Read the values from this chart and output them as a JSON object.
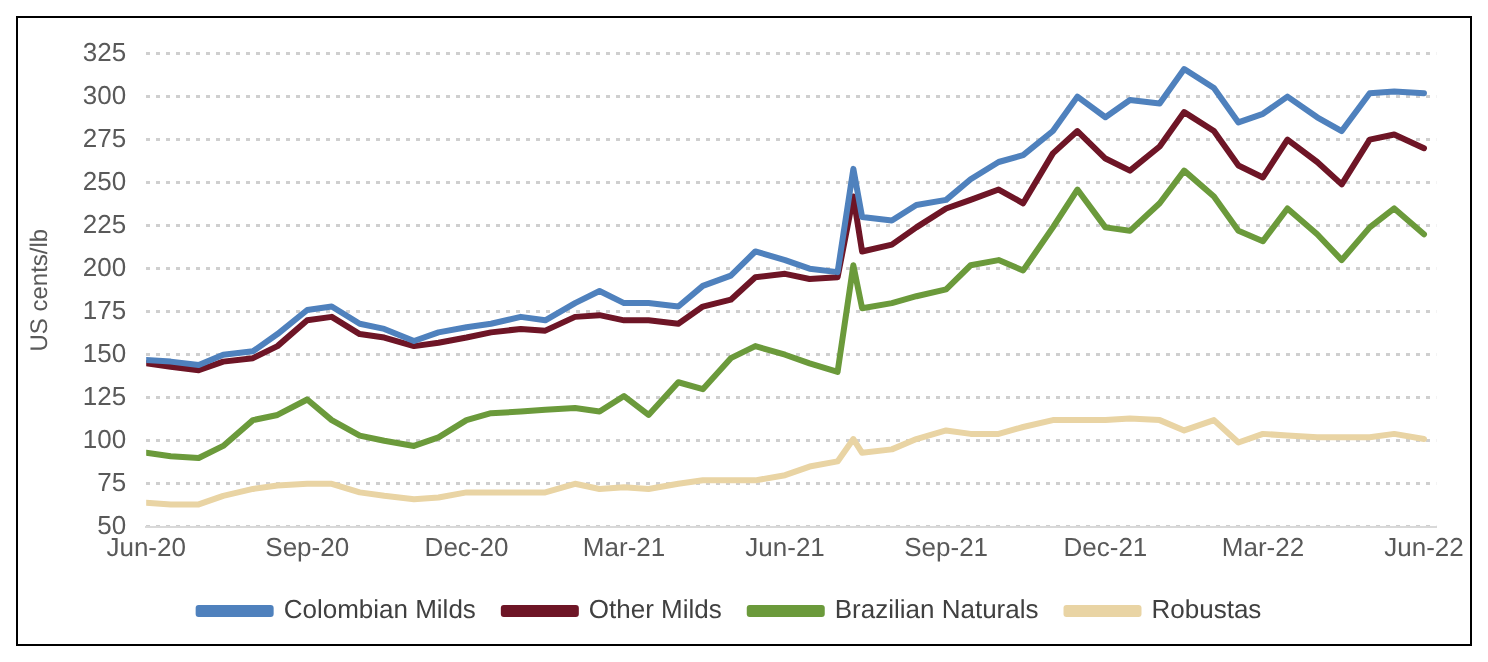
{
  "chart_data": {
    "type": "line",
    "ylabel": "US cents/lb",
    "x": [
      "2020-06-01",
      "2020-06-15",
      "2020-07-01",
      "2020-07-15",
      "2020-08-01",
      "2020-08-15",
      "2020-09-01",
      "2020-09-15",
      "2020-10-01",
      "2020-10-15",
      "2020-11-01",
      "2020-11-15",
      "2020-12-01",
      "2020-12-15",
      "2021-01-01",
      "2021-01-15",
      "2021-02-01",
      "2021-02-15",
      "2021-03-01",
      "2021-03-15",
      "2021-04-01",
      "2021-04-15",
      "2021-05-01",
      "2021-05-15",
      "2021-06-01",
      "2021-06-15",
      "2021-07-01",
      "2021-07-10",
      "2021-07-15",
      "2021-08-01",
      "2021-08-15",
      "2021-09-01",
      "2021-09-15",
      "2021-10-01",
      "2021-10-15",
      "2021-11-01",
      "2021-11-15",
      "2021-12-01",
      "2021-12-15",
      "2022-01-01",
      "2022-01-15",
      "2022-02-01",
      "2022-02-15",
      "2022-03-01",
      "2022-03-15",
      "2022-04-01",
      "2022-04-15",
      "2022-05-01",
      "2022-05-15",
      "2022-06-01"
    ],
    "series": [
      {
        "name": "Colombian Milds",
        "color": "#4f81bd",
        "values": [
          147,
          146,
          144,
          150,
          152,
          162,
          176,
          178,
          168,
          165,
          158,
          163,
          166,
          168,
          172,
          170,
          180,
          187,
          180,
          180,
          178,
          190,
          196,
          210,
          205,
          200,
          198,
          258,
          230,
          228,
          237,
          240,
          252,
          262,
          266,
          280,
          300,
          288,
          298,
          296,
          316,
          305,
          285,
          290,
          300,
          288,
          280,
          302,
          303,
          302
        ]
      },
      {
        "name": "Other Milds",
        "color": "#6e1526",
        "values": [
          145,
          143,
          141,
          146,
          148,
          155,
          170,
          172,
          162,
          160,
          155,
          157,
          160,
          163,
          165,
          164,
          172,
          173,
          170,
          170,
          168,
          178,
          182,
          195,
          197,
          194,
          195,
          242,
          210,
          214,
          224,
          235,
          240,
          246,
          238,
          267,
          280,
          264,
          257,
          271,
          291,
          280,
          260,
          253,
          275,
          262,
          249,
          275,
          278,
          270
        ]
      },
      {
        "name": "Brazilian Naturals",
        "color": "#6b9a3b",
        "values": [
          93,
          91,
          90,
          97,
          112,
          115,
          124,
          112,
          103,
          100,
          97,
          102,
          112,
          116,
          117,
          118,
          119,
          117,
          126,
          115,
          134,
          130,
          148,
          155,
          150,
          145,
          140,
          202,
          177,
          180,
          184,
          188,
          202,
          205,
          199,
          224,
          246,
          224,
          222,
          238,
          257,
          242,
          222,
          216,
          235,
          220,
          205,
          224,
          235,
          220
        ]
      },
      {
        "name": "Robustas",
        "color": "#e9d4a4",
        "values": [
          64,
          63,
          63,
          68,
          72,
          74,
          75,
          75,
          70,
          68,
          66,
          67,
          70,
          70,
          70,
          70,
          75,
          72,
          73,
          72,
          75,
          77,
          77,
          77,
          80,
          85,
          88,
          101,
          93,
          95,
          101,
          106,
          104,
          104,
          108,
          112,
          112,
          112,
          113,
          112,
          106,
          112,
          99,
          104,
          103,
          102,
          102,
          102,
          104,
          101
        ]
      }
    ],
    "xlim": [
      "2020-06-01",
      "2022-06-08"
    ],
    "xticks": [
      {
        "value": "2020-06-01",
        "label": "Jun-20"
      },
      {
        "value": "2020-09-01",
        "label": "Sep-20"
      },
      {
        "value": "2020-12-01",
        "label": "Dec-20"
      },
      {
        "value": "2021-03-01",
        "label": "Mar-21"
      },
      {
        "value": "2021-06-01",
        "label": "Jun-21"
      },
      {
        "value": "2021-09-01",
        "label": "Sep-21"
      },
      {
        "value": "2021-12-01",
        "label": "Dec-21"
      },
      {
        "value": "2022-03-01",
        "label": "Mar-22"
      },
      {
        "value": "2022-06-01",
        "label": "Jun-22"
      }
    ],
    "ylim": [
      50,
      325
    ],
    "yticks": [
      50,
      75,
      100,
      125,
      150,
      175,
      200,
      225,
      250,
      275,
      300,
      325
    ],
    "grid": "y",
    "legend": "bottom",
    "marker": "none",
    "line_style": "solid"
  }
}
